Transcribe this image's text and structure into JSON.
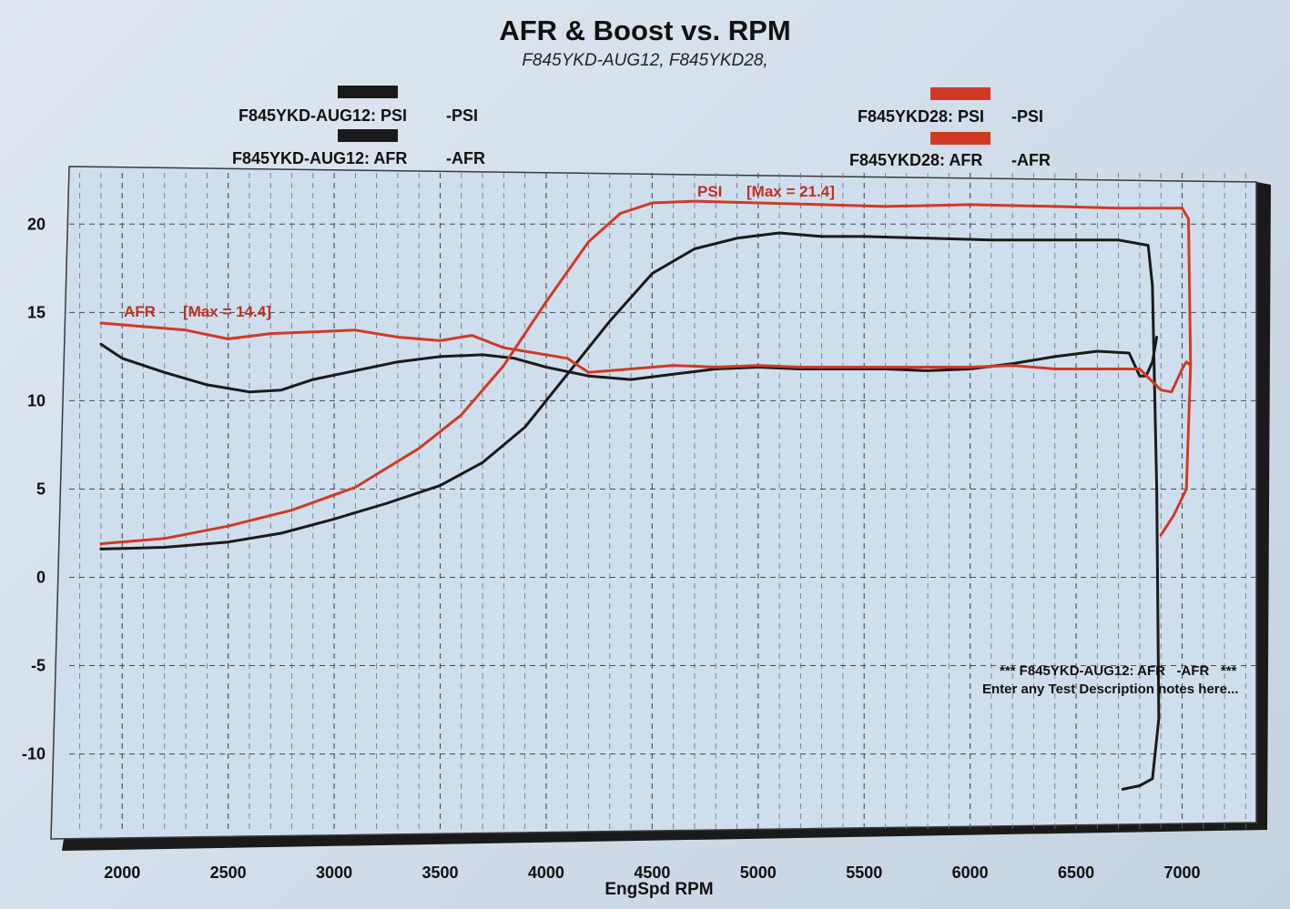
{
  "chart_data": {
    "type": "line",
    "title": "AFR & Boost vs. RPM",
    "subtitle": "F845YKD-AUG12, F845YKD28,",
    "xlabel": "EngSpd RPM",
    "ylabel": "",
    "xlim": [
      1750,
      7350
    ],
    "ylim": [
      -14.4,
      22.9
    ],
    "grid": true,
    "legend_position": "top",
    "x_ticks": [
      "2000",
      "2500",
      "3000",
      "3500",
      "4000",
      "4500",
      "5000",
      "5500",
      "6000",
      "6500",
      "7000"
    ],
    "y_ticks": [
      "20",
      "15",
      "10",
      "5",
      "0",
      "-5",
      "-10"
    ],
    "legend": [
      {
        "label": "F845YKD-AUG12: PSI",
        "unit": "-PSI",
        "color": "#1a1a1a"
      },
      {
        "label": "F845YKD-AUG12: AFR",
        "unit": "-AFR",
        "color": "#1a1a1a"
      },
      {
        "label": "F845YKD28: PSI",
        "unit": "-PSI",
        "color": "#d03a24"
      },
      {
        "label": "F845YKD28: AFR",
        "unit": "-AFR",
        "color": "#d03a24"
      }
    ],
    "annotations": {
      "psi_max": {
        "name": "PSI",
        "text": "[Max = 21.4]"
      },
      "afr_max": {
        "name": "AFR",
        "text": "[Max = 14.4]"
      },
      "note_line1": "*** F845YKD-AUG12: AFR   -AFR   ***",
      "note_line2": "Enter any Test Description notes here..."
    },
    "series": [
      {
        "name": "F845YKD-AUG12: PSI",
        "color": "#1a1a1a",
        "x": [
          1900,
          2200,
          2500,
          2750,
          3000,
          3250,
          3500,
          3700,
          3900,
          4100,
          4300,
          4500,
          4700,
          4900,
          5100,
          5300,
          5500,
          5800,
          6100,
          6400,
          6700,
          6840,
          6860,
          6880,
          6890,
          6860,
          6800,
          6720
        ],
        "y": [
          1.6,
          1.7,
          2.0,
          2.5,
          3.3,
          4.2,
          5.2,
          6.5,
          8.5,
          11.5,
          14.5,
          17.2,
          18.6,
          19.2,
          19.5,
          19.3,
          19.3,
          19.2,
          19.1,
          19.1,
          19.1,
          18.8,
          16.5,
          5.0,
          -8.0,
          -11.4,
          -11.8,
          -12.0
        ]
      },
      {
        "name": "F845YKD-AUG12: AFR",
        "color": "#1a1a1a",
        "x": [
          1900,
          2000,
          2200,
          2400,
          2600,
          2750,
          2900,
          3100,
          3300,
          3500,
          3700,
          3850,
          4000,
          4200,
          4400,
          4600,
          4800,
          5000,
          5200,
          5400,
          5600,
          5800,
          6000,
          6200,
          6400,
          6600,
          6750,
          6800,
          6830,
          6860,
          6880
        ],
        "y": [
          13.2,
          12.4,
          11.6,
          10.9,
          10.5,
          10.6,
          11.2,
          11.7,
          12.2,
          12.5,
          12.6,
          12.4,
          11.9,
          11.4,
          11.2,
          11.5,
          11.8,
          11.9,
          11.8,
          11.8,
          11.8,
          11.7,
          11.8,
          12.1,
          12.5,
          12.8,
          12.7,
          11.4,
          11.4,
          12.2,
          13.6
        ]
      },
      {
        "name": "F845YKD28: PSI",
        "color": "#d03a24",
        "x": [
          1900,
          2200,
          2500,
          2800,
          3100,
          3400,
          3600,
          3800,
          4000,
          4200,
          4350,
          4500,
          4700,
          5000,
          5300,
          5600,
          6000,
          6400,
          6700,
          6900,
          7000,
          7030,
          7040,
          7020,
          6960,
          6900
        ],
        "y": [
          1.9,
          2.2,
          2.9,
          3.8,
          5.1,
          7.3,
          9.2,
          12.0,
          15.6,
          19.0,
          20.6,
          21.2,
          21.3,
          21.2,
          21.1,
          21.0,
          21.1,
          21.0,
          20.9,
          20.9,
          20.9,
          20.3,
          12.0,
          5.0,
          3.5,
          2.4
        ]
      },
      {
        "name": "F845YKD28: AFR",
        "color": "#d03a24",
        "x": [
          1900,
          2100,
          2300,
          2500,
          2700,
          2900,
          3100,
          3300,
          3500,
          3650,
          3800,
          3950,
          4100,
          4200,
          4400,
          4600,
          4800,
          5000,
          5200,
          5400,
          5600,
          5800,
          6000,
          6200,
          6400,
          6600,
          6800,
          6900,
          6950,
          7000,
          7020,
          7040
        ],
        "y": [
          14.4,
          14.2,
          14.0,
          13.5,
          13.8,
          13.9,
          14.0,
          13.6,
          13.4,
          13.7,
          13.0,
          12.7,
          12.4,
          11.6,
          11.8,
          12.0,
          11.9,
          12.0,
          11.9,
          11.9,
          11.9,
          11.9,
          11.9,
          12.0,
          11.8,
          11.8,
          11.8,
          10.6,
          10.5,
          11.8,
          12.2,
          12.0
        ]
      }
    ]
  }
}
